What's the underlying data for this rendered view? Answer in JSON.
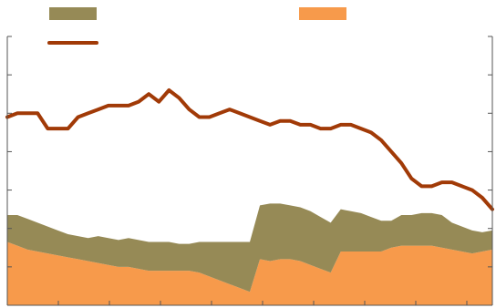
{
  "chart_data": {
    "type": "area",
    "title": "",
    "xlabel": "",
    "ylabel": "",
    "ylim_left": [
      0,
      70
    ],
    "ylim_right": [
      0,
      70
    ],
    "grid": false,
    "legend": "top",
    "x": [
      0,
      2,
      4,
      6,
      8,
      10,
      12,
      14,
      16,
      18,
      20,
      22,
      24,
      26,
      28,
      30,
      32,
      34,
      36,
      38,
      40,
      42,
      44,
      46,
      48,
      50,
      52,
      54,
      56,
      58,
      60,
      62,
      64,
      66,
      68,
      70,
      72,
      74,
      76,
      78,
      80,
      82,
      84,
      86,
      88,
      90,
      92,
      94,
      96
    ],
    "series": [
      {
        "kind": "area-stacked",
        "color": "#F79A4B",
        "values": [
          16.5,
          15.5,
          14.5,
          14,
          13.5,
          13,
          12.5,
          12,
          11.5,
          11,
          10.5,
          10,
          10,
          9.5,
          9,
          9,
          9,
          9,
          9,
          8.5,
          7.5,
          6.5,
          5.5,
          4.5,
          3.5,
          12,
          11.5,
          12,
          12,
          11.5,
          10.5,
          9.5,
          8.5,
          14,
          14,
          14,
          14,
          14,
          15,
          15.5,
          15.5,
          15.5,
          15.5,
          15,
          14.5,
          14,
          13.5,
          14,
          14.5
        ]
      },
      {
        "kind": "area-stacked",
        "color": "#968A56",
        "values": [
          7,
          8,
          8,
          7.5,
          7,
          6.5,
          6,
          6,
          6,
          7,
          7,
          7,
          7.5,
          7.5,
          7.5,
          7.5,
          7.5,
          7,
          7,
          8,
          9,
          10,
          11,
          12,
          13,
          14,
          15,
          14.5,
          14,
          14,
          14,
          13.5,
          13,
          11,
          10.5,
          10,
          9,
          8,
          7,
          8,
          8,
          8.5,
          8.5,
          8.5,
          7,
          6.5,
          6,
          5,
          5
        ]
      },
      {
        "kind": "line",
        "color": "#A13A07",
        "values": [
          49,
          50,
          50,
          50,
          46,
          46,
          46,
          49,
          50,
          51,
          52,
          52,
          52,
          53,
          55,
          53,
          56,
          54,
          51,
          49,
          49,
          50,
          51,
          50,
          49,
          48,
          47,
          48,
          48,
          47,
          47,
          46,
          46,
          47,
          47,
          46,
          45,
          43,
          40,
          37,
          33,
          31,
          31,
          32,
          32,
          31,
          30,
          28,
          25
        ]
      }
    ]
  }
}
